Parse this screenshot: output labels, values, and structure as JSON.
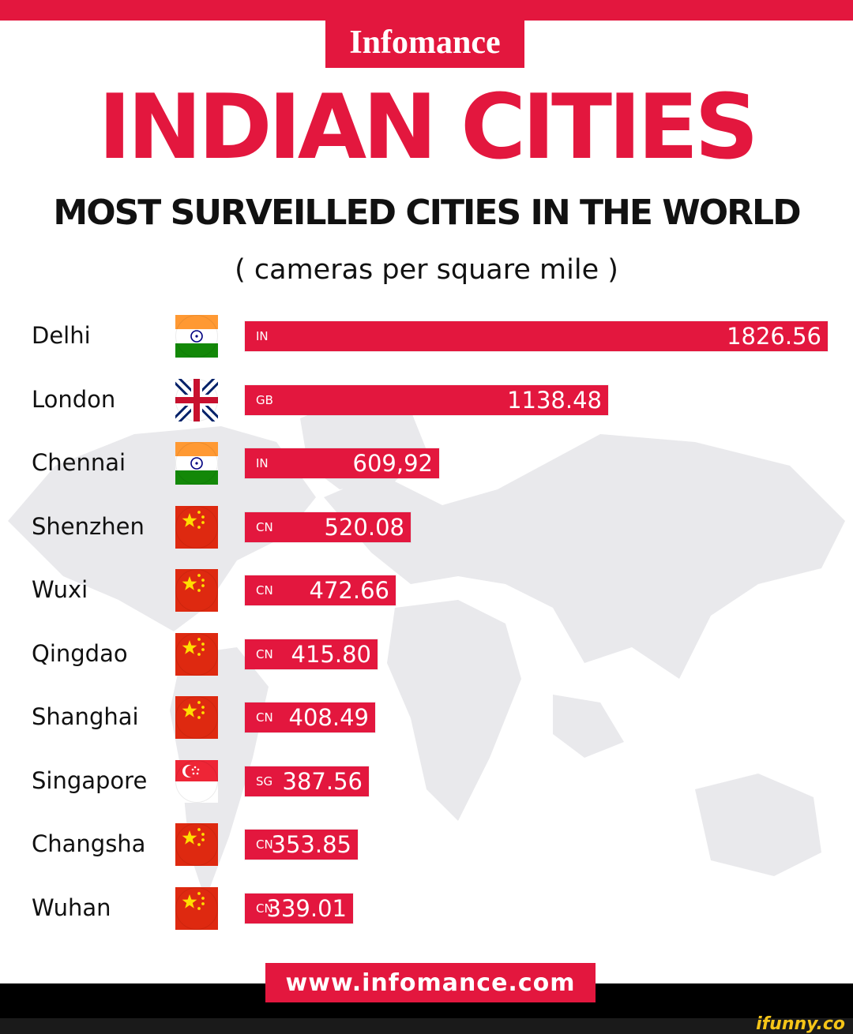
{
  "brand": "Infomance",
  "headline": "INDIAN CITIES",
  "chart_data": {
    "type": "bar",
    "orientation": "horizontal",
    "title": "MOST SURVEILLED CITIES IN THE WORLD",
    "subtitle": "( cameras per square mile )",
    "categories": [
      "Delhi",
      "London",
      "Chennai",
      "Shenzhen",
      "Wuxi",
      "Qingdao",
      "Shanghai",
      "Singapore",
      "Changsha",
      "Wuhan"
    ],
    "country_codes": [
      "IN",
      "GB",
      "IN",
      "CN",
      "CN",
      "CN",
      "CN",
      "SG",
      "CN",
      "CN"
    ],
    "values": [
      1826.56,
      1138.48,
      609.92,
      520.08,
      472.66,
      415.8,
      408.49,
      387.56,
      353.85,
      339.01
    ],
    "value_labels": [
      "1826.56",
      "1138.48",
      "609,92",
      "520.08",
      "472.66",
      "415.80",
      "408.49",
      "387.56",
      "353.85",
      "339.01"
    ],
    "bar_color": "#e3173e",
    "grid": false,
    "legend": "none"
  },
  "website": "www.infomance.com",
  "watermark": "ifunny.co",
  "colors": {
    "accent": "#e3173e",
    "text": "#111111"
  }
}
